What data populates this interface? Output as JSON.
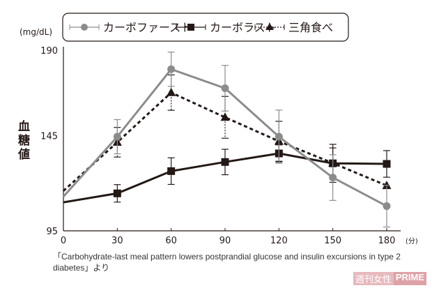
{
  "chart_data": {
    "type": "line",
    "ylabel": "血糖値",
    "yunit": "(mg/dL)",
    "xunit": "(分)",
    "x": [
      0,
      30,
      60,
      90,
      120,
      150,
      180
    ],
    "xticks": [
      "0",
      "30",
      "60",
      "90",
      "120",
      "150",
      "180"
    ],
    "yticks": [
      "95",
      "145",
      "190"
    ],
    "ylim": [
      95,
      190
    ],
    "xlim": [
      0,
      180
    ],
    "grid": false,
    "legend_position": "top",
    "series": [
      {
        "name": "カーボファースト",
        "color": "#8c8c8c",
        "marker": "circle",
        "line": "solid",
        "values": [
          113,
          144.5,
          180,
          170,
          144.5,
          123,
          108
        ],
        "errors": [
          0,
          9,
          9,
          12,
          14,
          12,
          11
        ]
      },
      {
        "name": "カーボラスト",
        "color": "#231815",
        "marker": "square",
        "line": "solid",
        "values": [
          110,
          114.7,
          126.4,
          131.2,
          135.7,
          130.5,
          130.2
        ],
        "errors": [
          0,
          4.6,
          7,
          6.7,
          4.5,
          10,
          7
        ]
      },
      {
        "name": "三角食べ",
        "color": "#231815",
        "marker": "triangle",
        "line": "dashed",
        "values": [
          116,
          141.6,
          167.7,
          154.7,
          142.1,
          130.6,
          118.8
        ],
        "errors": [
          0,
          7.8,
          9.3,
          11,
          10.5,
          8,
          0
        ]
      }
    ]
  },
  "caption": "「Carbohydrate-last meal pattern lowers postprandial glucose and insulin excursions in type 2 diabetes」より",
  "watermark": {
    "left": "週刊女性",
    "right": "PRIME"
  }
}
